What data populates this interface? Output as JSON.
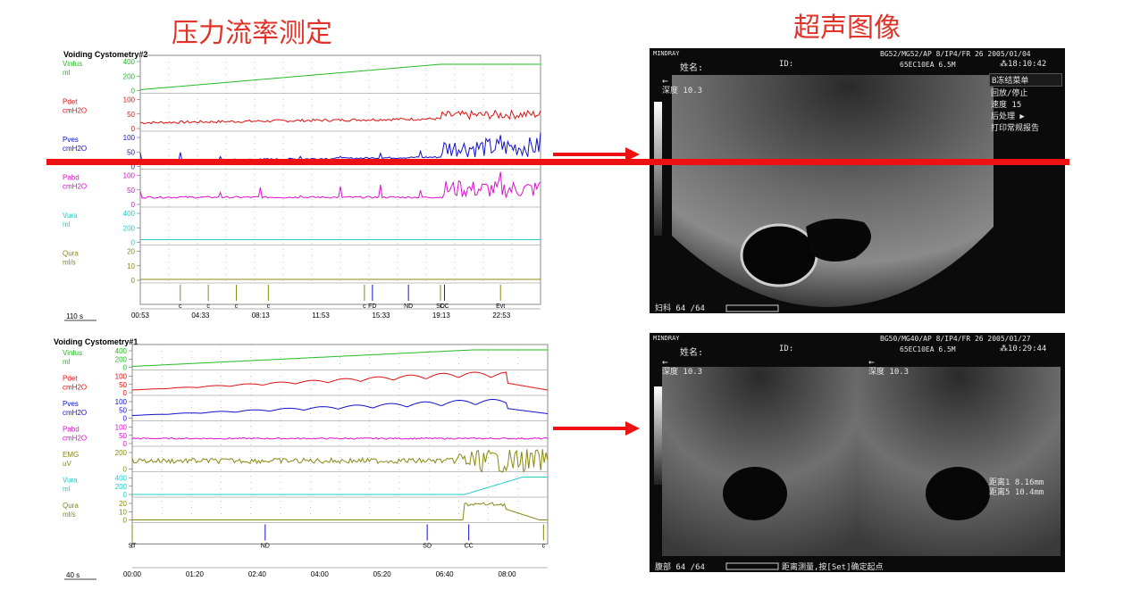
{
  "titles": {
    "left": "压力流率测定",
    "right": "超声图像"
  },
  "colors": {
    "green": "#22bb22",
    "red": "#dd1111",
    "blue": "#1111cc",
    "magenta": "#dd11cc",
    "cyan": "#22cccc",
    "olive": "#888811",
    "arrow": "#ee1111"
  },
  "chart_data": [
    {
      "type": "line",
      "title": "Voiding Cystometry#2",
      "scale_label": "110 s",
      "time_ticks": [
        "00:53",
        "04:33",
        "08:13",
        "11:53",
        "15:33",
        "19:13",
        "22:53"
      ],
      "channels": [
        {
          "name": "Vinfus",
          "unit": "ml",
          "color": "#22bb22",
          "ticks": [
            "400",
            "200",
            "0"
          ]
        },
        {
          "name": "Pdet",
          "unit": "cmH2O",
          "color": "#dd1111",
          "ticks": [
            "100",
            "50",
            "0"
          ]
        },
        {
          "name": "Pves",
          "unit": "cmH2O",
          "color": "#1111cc",
          "ticks": [
            "100",
            "50",
            "0"
          ]
        },
        {
          "name": "Pabd",
          "unit": "cmH2O",
          "color": "#dd11cc",
          "ticks": [
            "100",
            "50",
            "0"
          ]
        },
        {
          "name": "Vura",
          "unit": "ml",
          "color": "#22cccc",
          "ticks": [
            "400",
            "200",
            "0"
          ]
        },
        {
          "name": "Qura",
          "unit": "ml/s",
          "color": "#888811",
          "ticks": [
            "20",
            "10",
            "0"
          ]
        }
      ],
      "events": [
        "c",
        "c",
        "c",
        "c",
        "c",
        "FD",
        "ND",
        "SD",
        "CC",
        "Evt"
      ]
    },
    {
      "type": "line",
      "title": "Voiding Cystometry#1",
      "scale_label": "40 s",
      "time_ticks": [
        "00:00",
        "01:20",
        "02:40",
        "04:00",
        "05:20",
        "06:40",
        "08:00"
      ],
      "channels": [
        {
          "name": "Vinfus",
          "unit": "ml",
          "color": "#22bb22",
          "ticks": [
            "400",
            "200",
            "0"
          ]
        },
        {
          "name": "Pdet",
          "unit": "cmH2O",
          "color": "#dd1111",
          "ticks": [
            "100",
            "50",
            "0"
          ]
        },
        {
          "name": "Pves",
          "unit": "cmH2O",
          "color": "#1111cc",
          "ticks": [
            "100",
            "50",
            "0"
          ]
        },
        {
          "name": "Pabd",
          "unit": "cmH2O",
          "color": "#dd11cc",
          "ticks": [
            "100",
            "50",
            "0"
          ]
        },
        {
          "name": "EMG",
          "unit": "uV",
          "color": "#888811",
          "ticks": [
            "200",
            "0"
          ]
        },
        {
          "name": "Vura",
          "unit": "ml",
          "color": "#22cccc",
          "ticks": [
            "400",
            "200",
            "0"
          ]
        },
        {
          "name": "Qura",
          "unit": "ml/s",
          "color": "#888811",
          "ticks": [
            "20",
            "10",
            "0"
          ]
        }
      ],
      "events": [
        "ST",
        "c",
        "ND",
        "SD",
        "CC",
        "c"
      ]
    }
  ],
  "ultrasound": [
    {
      "header_line1": "BG52/MG52/AP 8/IP4/FR 26 2005/01/04",
      "header_line2": "65EC10EA     6.5M",
      "time": "18:10:42",
      "name_label": "姓名:",
      "id_label": "ID:",
      "brand": "MINDRAY",
      "depth": "深度  10.3",
      "menu": [
        "B冻结菜单",
        "回放/停止",
        "速度        15",
        "后处理       ▶",
        "打印常规报告"
      ],
      "footer": "妇科  64 /64"
    },
    {
      "header_line1": "BG50/MG40/AP 8/IP4/FR 26 2005/01/27",
      "header_line2": "65EC10EA     6.5M",
      "time": "10:29:44",
      "name_label": "姓名:",
      "id_label": "ID:",
      "brand": "MINDRAY",
      "depth_left": "深度  10.3",
      "depth_right": "深度  10.3",
      "measure1": "距离1   8.16mm",
      "measure2": "距离5  10.4mm",
      "footer": "腹部  64 /64",
      "footer_hint": "距离测量,按[Set]确定起点"
    }
  ]
}
